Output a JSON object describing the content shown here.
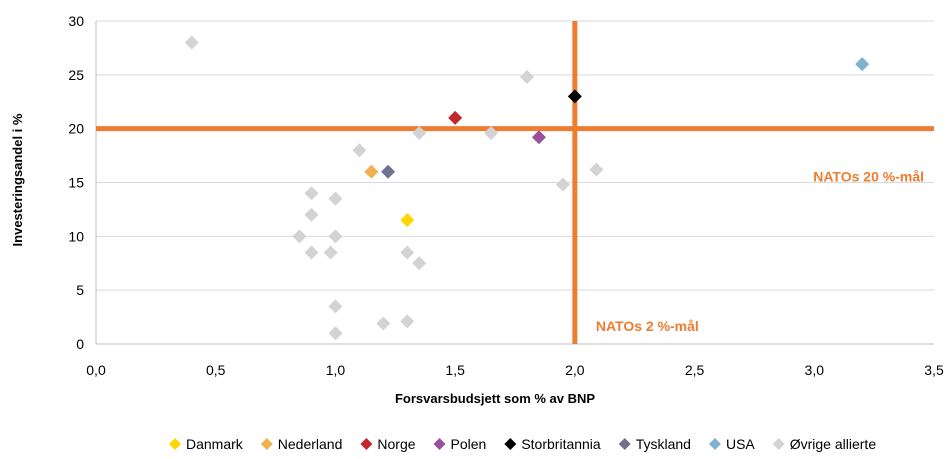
{
  "chart_data": {
    "type": "scatter",
    "xlabel": "Forsvarsbudsjett som % av BNP",
    "ylabel": "Investeringsandel i %",
    "xlim": [
      0,
      3.5
    ],
    "ylim": [
      0,
      30
    ],
    "x_ticks": [
      "0,0",
      "0,5",
      "1,0",
      "1,5",
      "2,0",
      "2,5",
      "3,0",
      "3,5"
    ],
    "y_ticks": [
      "0",
      "5",
      "10",
      "15",
      "20",
      "25",
      "30"
    ],
    "grid": "horizontal",
    "legend_position": "bottom",
    "reference_lines": [
      {
        "axis": "y",
        "value": 20,
        "label": "NATOs 20 %-mål",
        "color": "#ed7d31"
      },
      {
        "axis": "x",
        "value": 2.0,
        "label": "NATOs 2 %-mål",
        "color": "#ed7d31"
      }
    ],
    "series": [
      {
        "name": "Danmark",
        "color": "#ffd700",
        "points": [
          [
            1.3,
            11.5
          ]
        ]
      },
      {
        "name": "Nederland",
        "color": "#f0b050",
        "points": [
          [
            1.15,
            16
          ]
        ]
      },
      {
        "name": "Norge",
        "color": "#c0282e",
        "points": [
          [
            1.5,
            21
          ]
        ]
      },
      {
        "name": "Polen",
        "color": "#9b4f9b",
        "points": [
          [
            1.85,
            19.2
          ]
        ]
      },
      {
        "name": "Storbritannia",
        "color": "#000000",
        "points": [
          [
            2.0,
            23
          ]
        ]
      },
      {
        "name": "Tyskland",
        "color": "#707090",
        "points": [
          [
            1.22,
            16
          ]
        ]
      },
      {
        "name": "USA",
        "color": "#7fb2cf",
        "points": [
          [
            3.2,
            26
          ]
        ]
      },
      {
        "name": "Øvrige allierte",
        "color": "#d3d3d3",
        "points": [
          [
            0.4,
            28
          ],
          [
            1.8,
            24.8
          ],
          [
            1.35,
            19.6
          ],
          [
            1.65,
            19.6
          ],
          [
            1.1,
            18
          ],
          [
            2.09,
            16.2
          ],
          [
            1.95,
            14.8
          ],
          [
            0.9,
            14
          ],
          [
            1.0,
            13.5
          ],
          [
            0.9,
            12
          ],
          [
            0.85,
            10
          ],
          [
            1.0,
            10
          ],
          [
            0.9,
            8.5
          ],
          [
            0.98,
            8.5
          ],
          [
            1.3,
            8.5
          ],
          [
            1.35,
            7.5
          ],
          [
            1.0,
            3.5
          ],
          [
            1.3,
            2.1
          ],
          [
            1.2,
            1.9
          ],
          [
            1.0,
            1
          ]
        ]
      }
    ]
  }
}
